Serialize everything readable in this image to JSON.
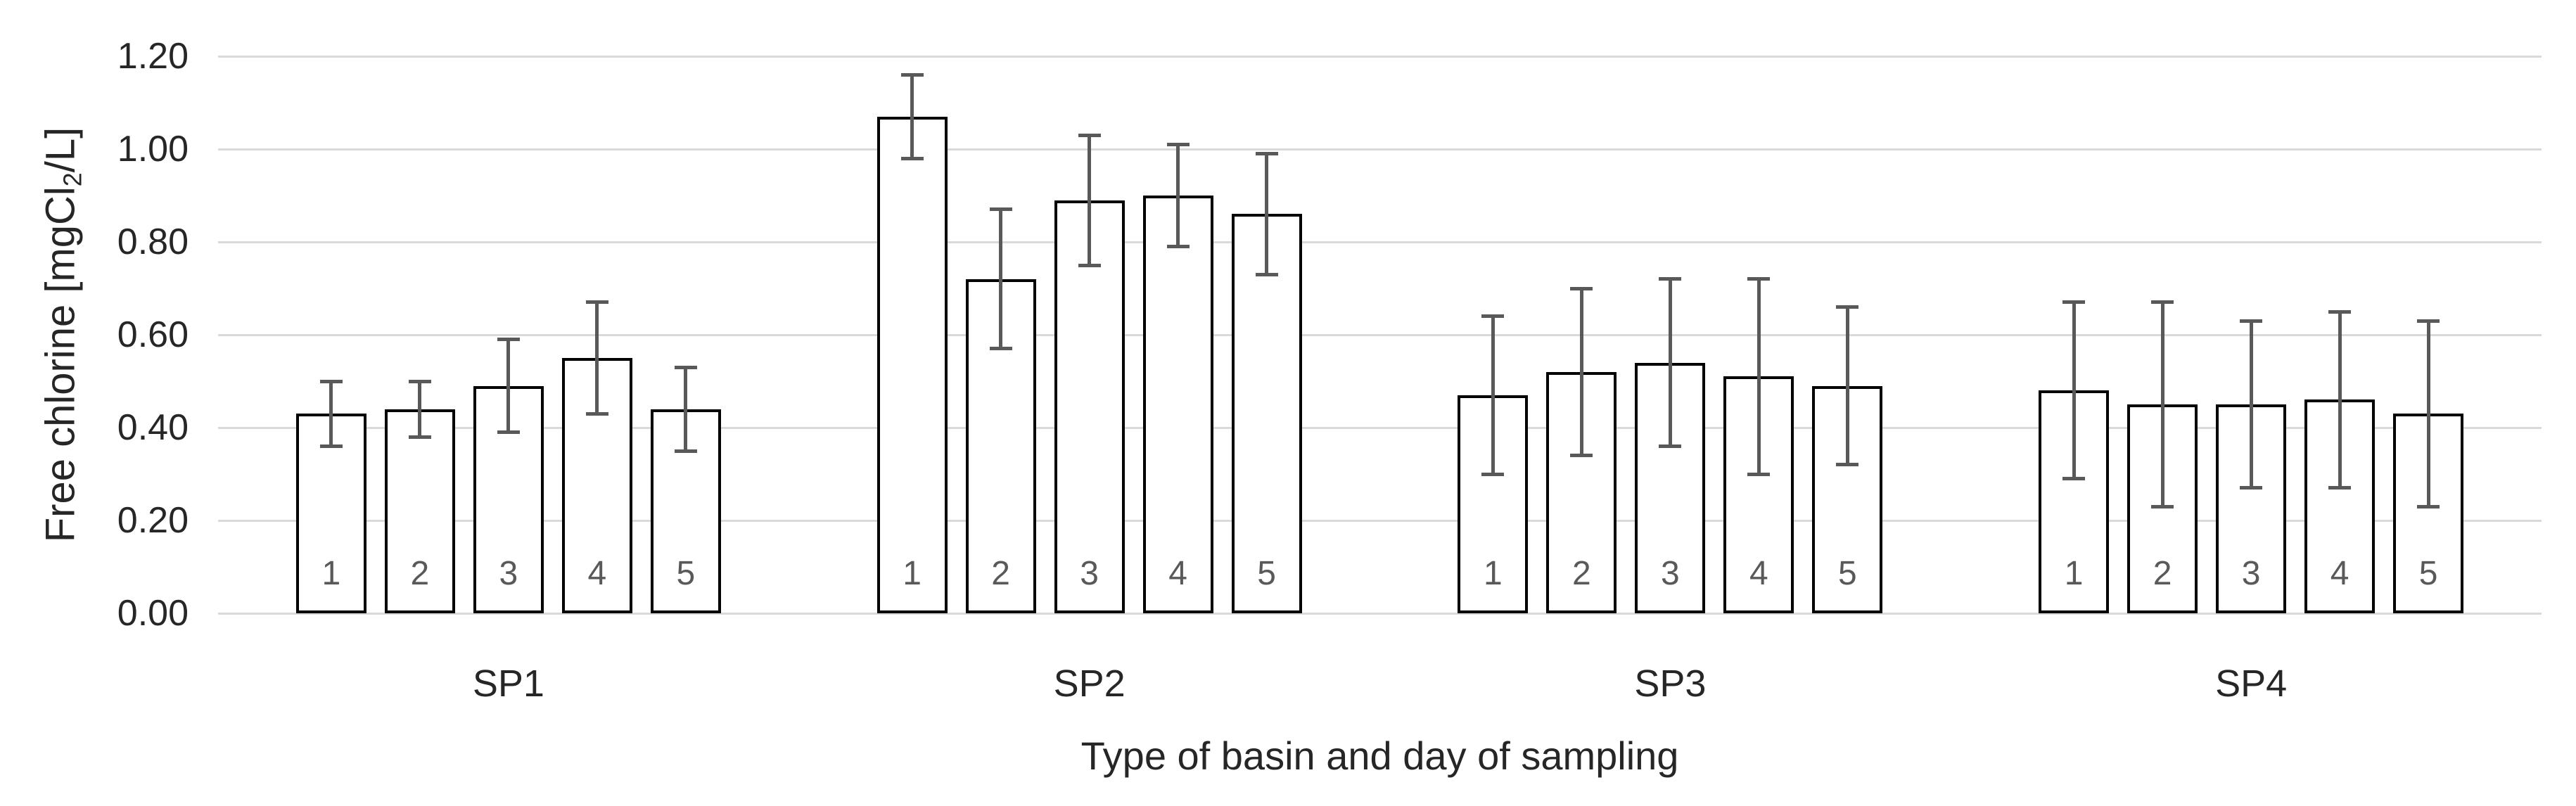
{
  "chart_data": {
    "type": "bar",
    "title": "",
    "xlabel": "Type of basin and day of sampling",
    "ylabel": "Free chlorine [mgCl2/L]",
    "ylabel_parts": {
      "prefix": "Free chlorine [mgCl",
      "subscript": "2",
      "suffix": "/L]"
    },
    "y_axis": {
      "min": 0.0,
      "max": 1.2,
      "step": 0.2,
      "tick_labels": [
        "0.00",
        "0.20",
        "0.40",
        "0.60",
        "0.80",
        "1.00",
        "1.20"
      ]
    },
    "grid": true,
    "legend": false,
    "bar_style": "white fill, black outline, gray error bars with caps",
    "groups": [
      {
        "label": "SP1",
        "days": [
          "1",
          "2",
          "3",
          "4",
          "5"
        ],
        "values": [
          0.43,
          0.44,
          0.49,
          0.55,
          0.44
        ],
        "errors": [
          0.07,
          0.06,
          0.1,
          0.12,
          0.09
        ]
      },
      {
        "label": "SP2",
        "days": [
          "1",
          "2",
          "3",
          "4",
          "5"
        ],
        "values": [
          1.07,
          0.72,
          0.89,
          0.9,
          0.86
        ],
        "errors": [
          0.09,
          0.15,
          0.14,
          0.11,
          0.13
        ]
      },
      {
        "label": "SP3",
        "days": [
          "1",
          "2",
          "3",
          "4",
          "5"
        ],
        "values": [
          0.47,
          0.52,
          0.54,
          0.51,
          0.49
        ],
        "errors": [
          0.17,
          0.18,
          0.18,
          0.21,
          0.17
        ]
      },
      {
        "label": "SP4",
        "days": [
          "1",
          "2",
          "3",
          "4",
          "5"
        ],
        "values": [
          0.48,
          0.45,
          0.45,
          0.46,
          0.43
        ],
        "errors": [
          0.19,
          0.22,
          0.18,
          0.19,
          0.2
        ]
      }
    ]
  },
  "colors": {
    "background": "#ffffff",
    "gridline": "#d9d9d9",
    "bar_fill": "#ffffff",
    "bar_border": "#000000",
    "error_bar": "#595959",
    "day_label": "#595959",
    "axis_text": "#262626"
  }
}
